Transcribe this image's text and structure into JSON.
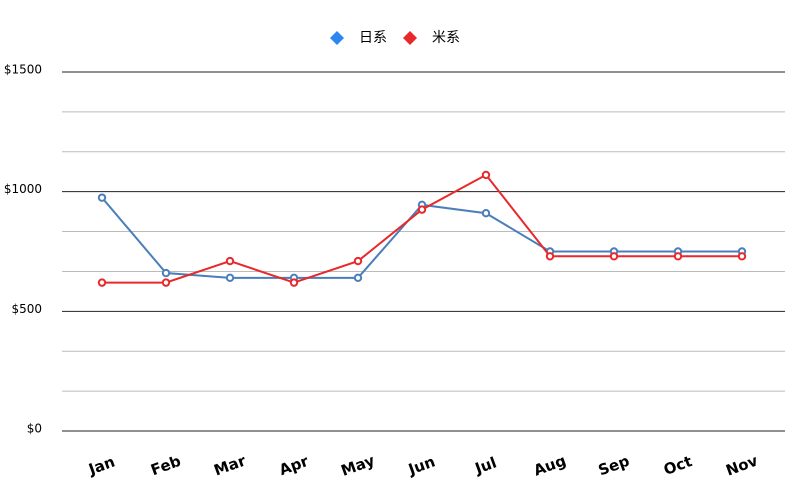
{
  "chart_data": {
    "type": "line",
    "categories": [
      "Jan",
      "Feb",
      "Mar",
      "Apr",
      "May",
      "Jun",
      "Jul",
      "Aug",
      "Sep",
      "Oct",
      "Nov"
    ],
    "series": [
      {
        "name": "日系",
        "color": "#4a7ebb",
        "values": [
          975,
          660,
          640,
          640,
          640,
          945,
          910,
          750,
          750,
          750,
          750
        ]
      },
      {
        "name": "米系",
        "color": "#e8292b",
        "values": [
          620,
          620,
          710,
          620,
          710,
          925,
          1070,
          730,
          730,
          730,
          730
        ]
      }
    ],
    "legend_colors": [
      "#2b86f0",
      "#e8292b"
    ],
    "ylim": [
      0,
      1500
    ],
    "yticks": [
      {
        "value": 0,
        "label": "$0"
      },
      {
        "value": 500,
        "label": "$500"
      },
      {
        "value": 1000,
        "label": "$1000"
      },
      {
        "value": 1500,
        "label": "$1500"
      }
    ],
    "grid": true,
    "minor_grid": 2,
    "legend": "top"
  }
}
